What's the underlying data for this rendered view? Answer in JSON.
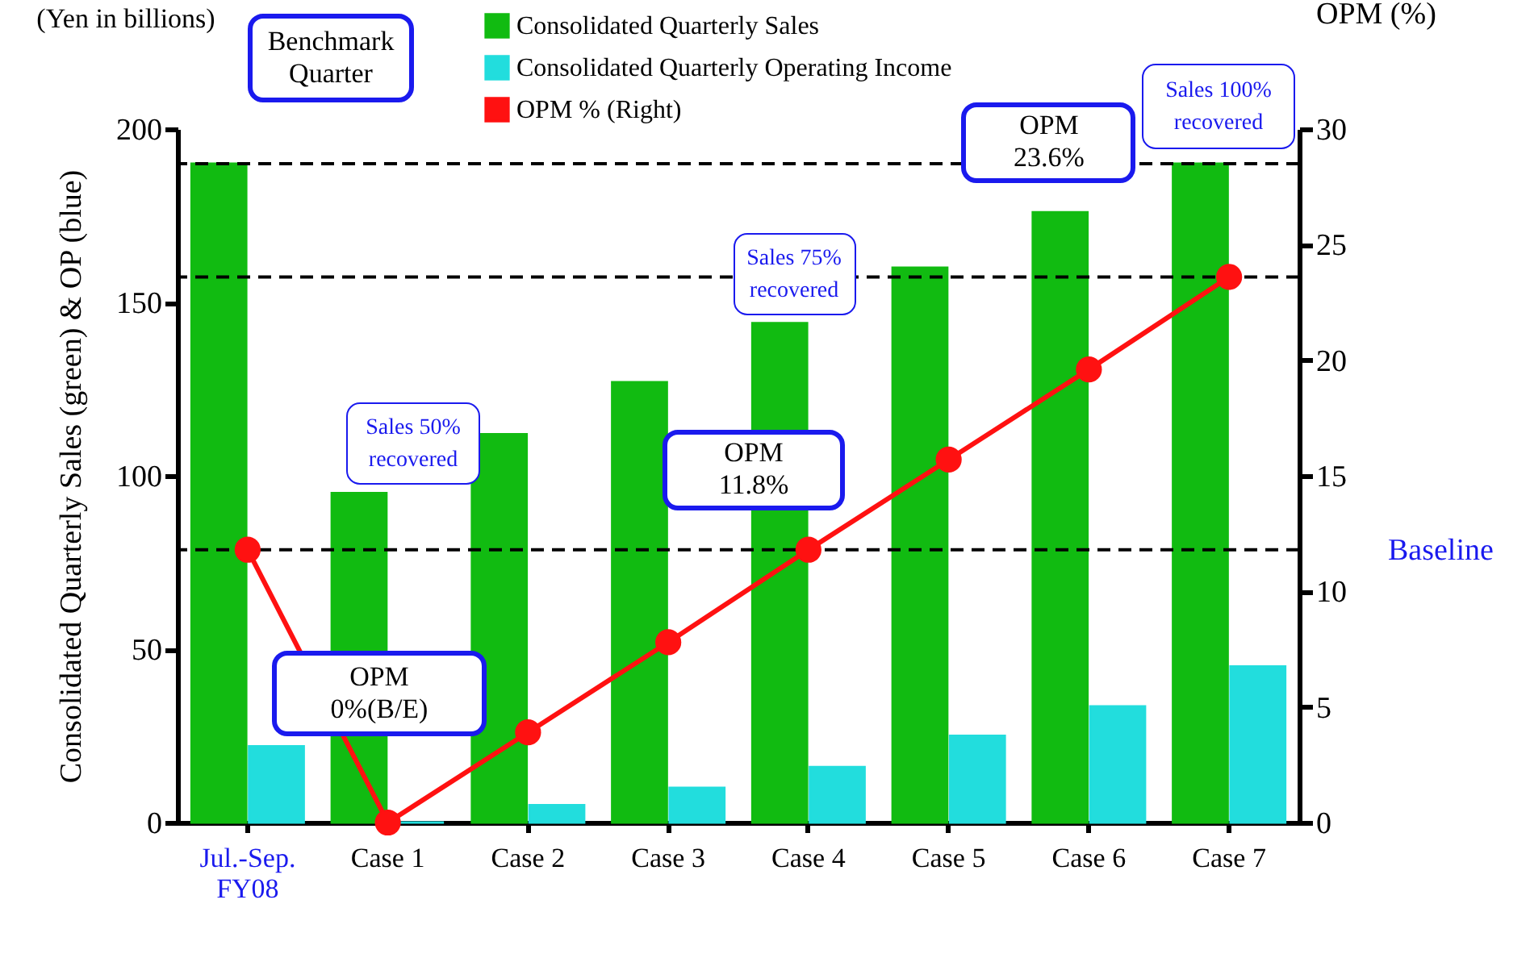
{
  "chart_data": {
    "type": "bar",
    "ylabel": "Consolidated Quarterly Sales (green) & OP (blue)",
    "y2label": "OPM (%)",
    "categories": [
      "Jul.-Sep.\nFY08",
      "Case 1",
      "Case 2",
      "Case 3",
      "Case 4",
      "Case 5",
      "Case 6",
      "Case 7"
    ],
    "series": [
      {
        "name": "Consolidated Quarterly Sales",
        "color": "#11bb11",
        "values": [
          190,
          95,
          112,
          127,
          144,
          160,
          176,
          190
        ]
      },
      {
        "name": "Consolidated Quarterly Operating Income",
        "color": "#22dddd",
        "values": [
          22,
          0,
          5,
          10,
          16,
          25,
          33.5,
          45
        ]
      },
      {
        "name": "OPM % (Right)",
        "type": "line",
        "axis": "y2",
        "color": "#ff1111",
        "values": [
          11.8,
          0,
          3.9,
          7.8,
          11.8,
          15.7,
          19.6,
          23.6
        ]
      }
    ],
    "ylim": [
      0,
      200
    ],
    "yticks": [
      0,
      50,
      100,
      150,
      200
    ],
    "y2lim": [
      0,
      30
    ],
    "y2ticks": [
      0,
      5,
      10,
      15,
      20,
      25,
      30
    ],
    "ref_lines": [
      {
        "axis": "y",
        "value": 190,
        "line_style": "dashed"
      },
      {
        "axis": "y2",
        "value": 11.8,
        "label": "Baseline",
        "line_style": "dashed"
      },
      {
        "axis": "y2",
        "value": 23.6,
        "line_style": "dashed"
      }
    ],
    "annotations": [
      "(Yen in billions)",
      "Benchmark\nQuarter",
      "Sales 50%\nrecovered",
      "OPM\n0%(B/E)",
      "OPM\n11.8%",
      "Sales 75%\nrecovered",
      "OPM\n23.6%",
      "Sales 100%\nrecovered"
    ],
    "marker": "circle",
    "legend": "top",
    "grid": false
  }
}
